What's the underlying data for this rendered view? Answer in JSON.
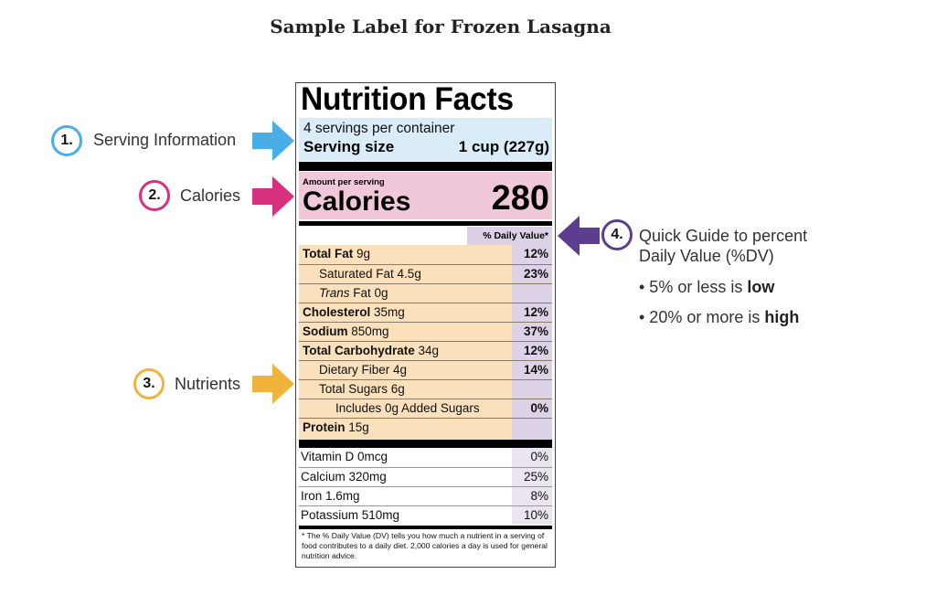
{
  "title": "Sample Label for Frozen Lasagna",
  "label": {
    "heading": "Nutrition Facts",
    "servings_per_container": "4 servings per container",
    "serving_size_label": "Serving size",
    "serving_size_value": "1 cup (227g)",
    "amount_per_serving": "Amount per serving",
    "calories_label": "Calories",
    "calories_value": "280",
    "dv_header": "% Daily Value*",
    "nutrients": [
      {
        "bold": "Total Fat",
        "name": " 9g",
        "dv": "12%"
      },
      {
        "bold": "",
        "name": "Saturated Fat 4.5g",
        "dv": "23%"
      },
      {
        "bold": "",
        "italic": "Trans",
        "name": " Fat 0g",
        "dv": ""
      },
      {
        "bold": "Cholesterol",
        "name": " 35mg",
        "dv": "12%"
      },
      {
        "bold": "Sodium",
        "name": " 850mg",
        "dv": "37%"
      },
      {
        "bold": "Total Carbohydrate",
        "name": " 34g",
        "dv": "12%"
      },
      {
        "bold": "",
        "name": "Dietary Fiber 4g",
        "dv": "14%"
      },
      {
        "bold": "",
        "name": "Total Sugars 6g",
        "dv": ""
      },
      {
        "bold": "",
        "name": "Includes 0g Added Sugars",
        "dv": "0%"
      },
      {
        "bold": "Protein",
        "name": " 15g",
        "dv": ""
      }
    ],
    "vitamins": [
      {
        "name": "Vitamin D 0mcg",
        "dv": "0%"
      },
      {
        "name": "Calcium 320mg",
        "dv": "25%"
      },
      {
        "name": "Iron 1.6mg",
        "dv": "8%"
      },
      {
        "name": "Potassium 510mg",
        "dv": "10%"
      }
    ],
    "footnote": "* The % Daily Value (DV) tells you how much a nutrient in a serving of food contributes to a daily diet. 2,000 calories a day is used for general nutrition advice."
  },
  "callouts": [
    {
      "number": "1.",
      "text": "Serving Information",
      "color": "#4aaee6"
    },
    {
      "number": "2.",
      "text": "Calories",
      "color": "#d6307f"
    },
    {
      "number": "3.",
      "text": "Nutrients",
      "color": "#f0b43c"
    },
    {
      "number": "4.",
      "text": "Quick Guide to percent",
      "text2": "Daily Value (%DV)",
      "color": "#5c3d8f"
    }
  ],
  "guide": {
    "bullet1_pre": "• 5% or less is ",
    "bullet1_bold": "low",
    "bullet2_pre": "• 20% or more is ",
    "bullet2_bold": "high"
  }
}
